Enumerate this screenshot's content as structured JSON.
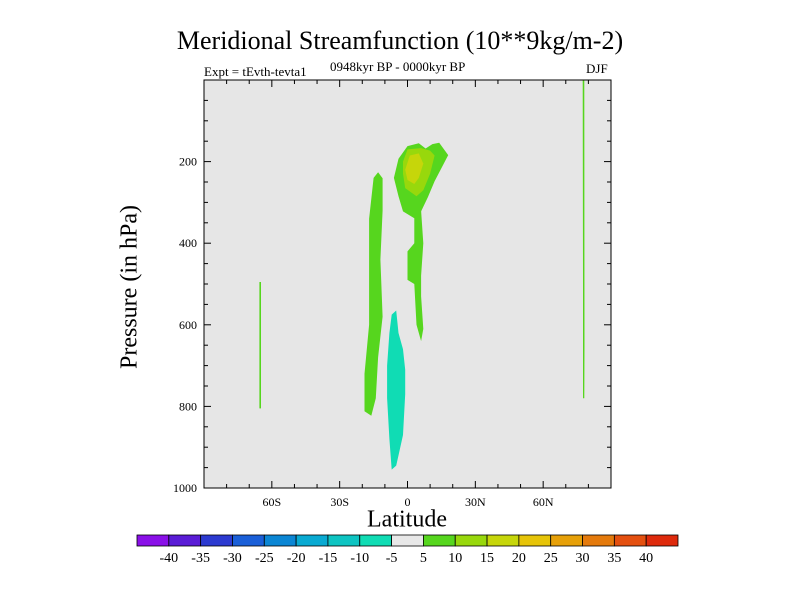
{
  "chart_data": {
    "type": "heatmap",
    "title": "Meridional Streamfunction (10**9kg/m-2)",
    "subtitle_left": "Expt = tEvth-tevta1",
    "subtitle_center": "0948kyr BP - 0000kyr BP",
    "subtitle_right": "DJF",
    "xlabel": "Latitude",
    "ylabel": "Pressure (in hPa)",
    "xlim": [
      -90,
      90
    ],
    "ylim": [
      1000,
      0
    ],
    "x_ticks": [
      {
        "value": -60,
        "label": "60S"
      },
      {
        "value": -30,
        "label": "30S"
      },
      {
        "value": 0,
        "label": "0"
      },
      {
        "value": 30,
        "label": "30N"
      },
      {
        "value": 60,
        "label": "60N"
      }
    ],
    "y_ticks": [
      {
        "value": 200,
        "label": "200"
      },
      {
        "value": 400,
        "label": "400"
      },
      {
        "value": 600,
        "label": "600"
      },
      {
        "value": 800,
        "label": "800"
      },
      {
        "value": 1000,
        "label": "1000"
      }
    ],
    "background_range": "-5 to 5",
    "background_color": "#e6e6e6",
    "colorbar": {
      "labels": [
        "-40",
        "-35",
        "-30",
        "-25",
        "-20",
        "-15",
        "-10",
        "-5",
        "5",
        "10",
        "15",
        "20",
        "25",
        "30",
        "35",
        "40"
      ],
      "colors": [
        "#8a10e8",
        "#5a1cd6",
        "#2c3ad0",
        "#1a5fd8",
        "#0b86d4",
        "#09aad2",
        "#0ec4c2",
        "#10dcb4",
        "#e8e8e8",
        "#56d61e",
        "#98d80c",
        "#c6d60a",
        "#e6c408",
        "#e6a008",
        "#e47a0c",
        "#e45010",
        "#de2a0c"
      ]
    },
    "regions": [
      {
        "name": "nh-upper-positive-10-15",
        "value_range": "5 to 10",
        "color": "#56d61e",
        "points": [
          [
            -4,
            193
          ],
          [
            0,
            162
          ],
          [
            5,
            155
          ],
          [
            8,
            168
          ],
          [
            11,
            157
          ],
          [
            14,
            154
          ],
          [
            18,
            184
          ],
          [
            12,
            248
          ],
          [
            9,
            287
          ],
          [
            6,
            322
          ],
          [
            3,
            339
          ],
          [
            -2,
            322
          ],
          [
            -4,
            285
          ],
          [
            -6,
            240
          ]
        ]
      },
      {
        "name": "nh-upper-core-10-15",
        "value_range": "10 to 15",
        "color": "#98d80c",
        "points": [
          [
            -2,
            200
          ],
          [
            0,
            170
          ],
          [
            6,
            167
          ],
          [
            10,
            173
          ],
          [
            12,
            185
          ],
          [
            10,
            230
          ],
          [
            7,
            270
          ],
          [
            4,
            285
          ],
          [
            -1,
            265
          ],
          [
            -2,
            230
          ]
        ]
      },
      {
        "name": "nh-upper-core-15-20",
        "value_range": "15 to 20",
        "color": "#c6d60a",
        "points": [
          [
            -1,
            220
          ],
          [
            1,
            185
          ],
          [
            5,
            180
          ],
          [
            7,
            205
          ],
          [
            5,
            240
          ],
          [
            3,
            255
          ],
          [
            0,
            245
          ]
        ]
      },
      {
        "name": "tropical-positive-column",
        "value_range": "5 to 10",
        "color": "#56d61e",
        "points": [
          [
            -15,
            240
          ],
          [
            -13,
            226
          ],
          [
            -11,
            241
          ],
          [
            -11,
            320
          ],
          [
            -12,
            440
          ],
          [
            -11,
            580
          ],
          [
            -13,
            680
          ],
          [
            -14,
            780
          ],
          [
            -16,
            823
          ],
          [
            -19,
            812
          ],
          [
            -19,
            720
          ],
          [
            -17,
            600
          ],
          [
            -17,
            450
          ],
          [
            -17,
            340
          ]
        ]
      },
      {
        "name": "nh-lower-positive-tongue",
        "value_range": "5 to 10",
        "color": "#56d61e",
        "points": [
          [
            3,
            330
          ],
          [
            6,
            320
          ],
          [
            7,
            400
          ],
          [
            6,
            480
          ],
          [
            6,
            530
          ],
          [
            7,
            610
          ],
          [
            6,
            640
          ],
          [
            4,
            600
          ],
          [
            3,
            500
          ],
          [
            0,
            490
          ],
          [
            0,
            420
          ],
          [
            3,
            400
          ]
        ]
      },
      {
        "name": "sh-negative-column",
        "value_range": "-10 to -5",
        "color": "#10dcb4",
        "points": [
          [
            -8,
            620
          ],
          [
            -7,
            575
          ],
          [
            -5,
            565
          ],
          [
            -4,
            620
          ],
          [
            -2,
            660
          ],
          [
            -1,
            710
          ],
          [
            -1,
            770
          ],
          [
            -2,
            870
          ],
          [
            -4,
            920
          ],
          [
            -5,
            945
          ],
          [
            -7,
            955
          ],
          [
            -8,
            880
          ],
          [
            -9,
            780
          ],
          [
            -9,
            700
          ]
        ]
      },
      {
        "name": "sh-polar-sliver",
        "value_range": "5 to 10",
        "color": "#56d61e",
        "points": [
          [
            -65.5,
            495
          ],
          [
            -64.8,
            495
          ],
          [
            -64.8,
            805
          ],
          [
            -65.5,
            805
          ]
        ]
      },
      {
        "name": "nh-polar-sliver",
        "value_range": "5 to 10",
        "color": "#56d61e",
        "points": [
          [
            77.5,
            0
          ],
          [
            78.2,
            0
          ],
          [
            78.3,
            650
          ],
          [
            78.2,
            780
          ],
          [
            77.6,
            780
          ],
          [
            77.6,
            500
          ]
        ]
      }
    ]
  }
}
